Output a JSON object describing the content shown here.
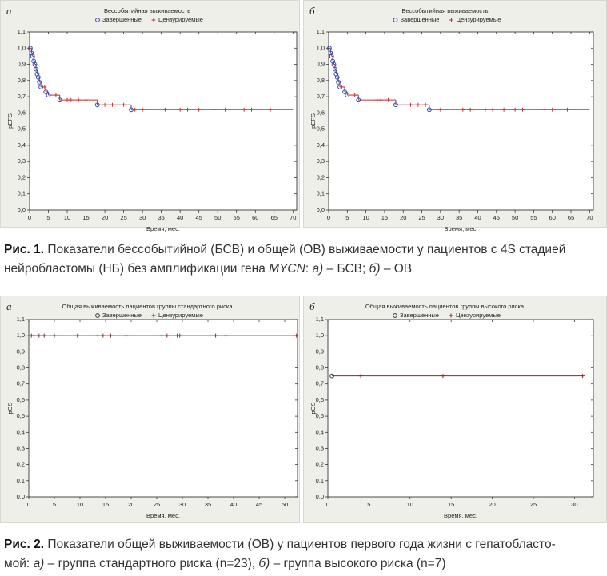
{
  "chart_data": [
    {
      "type": "step",
      "panel_label": "а",
      "title": "Бессобытийная выживаемость",
      "x_label": "Время, мес.",
      "y_label": "pEFS",
      "curve_color": "#c03030",
      "xlim": [
        0,
        71
      ],
      "xticks": [
        0,
        5,
        10,
        15,
        20,
        25,
        30,
        35,
        40,
        45,
        50,
        55,
        60,
        65,
        70
      ],
      "ylim": [
        0,
        1.1
      ],
      "yticks": [
        {
          "value": 0,
          "label": "0,0"
        },
        {
          "value": 0.1,
          "label": "0,1"
        },
        {
          "value": 0.2,
          "label": "0,2"
        },
        {
          "value": 0.3,
          "label": "0,3"
        },
        {
          "value": 0.4,
          "label": "0,4"
        },
        {
          "value": 0.5,
          "label": "0,5"
        },
        {
          "value": 0.6,
          "label": "0,6"
        },
        {
          "value": 0.7,
          "label": "0,7"
        },
        {
          "value": 0.8,
          "label": "0,8"
        },
        {
          "value": 0.9,
          "label": "0,9"
        },
        {
          "value": 1.0,
          "label": "1,0"
        },
        {
          "value": 1.1,
          "label": "1,1"
        }
      ],
      "curve": {
        "x": [
          0,
          0.5,
          0.8,
          1.1,
          1.4,
          1.7,
          2.0,
          2.3,
          2.6,
          3.0,
          4.3,
          5.0,
          8.0,
          18.0,
          27.0,
          70
        ],
        "values": [
          1.0,
          0.97,
          0.95,
          0.92,
          0.9,
          0.87,
          0.84,
          0.82,
          0.79,
          0.76,
          0.73,
          0.71,
          0.68,
          0.65,
          0.62,
          0.62
        ]
      },
      "series": [
        {
          "name": "Завершенные",
          "color": "#3a48a8",
          "marker": "circle",
          "x": [
            0.2,
            0.5,
            0.8,
            1.1,
            1.4,
            1.7,
            2.0,
            2.3,
            2.6,
            3.0,
            4.3,
            5.0,
            8.0,
            18.0,
            27.0
          ],
          "values": [
            1.0,
            0.97,
            0.95,
            0.92,
            0.9,
            0.87,
            0.84,
            0.82,
            0.79,
            0.76,
            0.73,
            0.71,
            0.68,
            0.65,
            0.62
          ]
        },
        {
          "name": "Цензурируемые",
          "color": "#d03030",
          "marker": "plus",
          "x": [
            4,
            7,
            10,
            11,
            13,
            15,
            20,
            22,
            25,
            28,
            30,
            36,
            40,
            42,
            45,
            49,
            52,
            57,
            59,
            64
          ],
          "values": [
            0.76,
            0.71,
            0.68,
            0.68,
            0.68,
            0.68,
            0.65,
            0.65,
            0.65,
            0.62,
            0.62,
            0.62,
            0.62,
            0.62,
            0.62,
            0.62,
            0.62,
            0.62,
            0.62,
            0.62
          ]
        }
      ]
    },
    {
      "type": "step",
      "panel_label": "б",
      "title": "Бессобытийная выживаемость",
      "x_label": "Время, мес.",
      "y_label": "pEFS",
      "curve_color": "#c03030",
      "xlim": [
        0,
        71
      ],
      "xticks": [
        0,
        5,
        10,
        15,
        20,
        25,
        30,
        35,
        40,
        45,
        50,
        55,
        60,
        65,
        70
      ],
      "ylim": [
        0,
        1.1
      ],
      "yticks": [
        {
          "value": 0,
          "label": "0,0"
        },
        {
          "value": 0.1,
          "label": "0,1"
        },
        {
          "value": 0.2,
          "label": "0,2"
        },
        {
          "value": 0.3,
          "label": "0,3"
        },
        {
          "value": 0.4,
          "label": "0,4"
        },
        {
          "value": 0.5,
          "label": "0,5"
        },
        {
          "value": 0.6,
          "label": "0,6"
        },
        {
          "value": 0.7,
          "label": "0,7"
        },
        {
          "value": 0.8,
          "label": "0,8"
        },
        {
          "value": 0.9,
          "label": "0,9"
        },
        {
          "value": 1.0,
          "label": "1,0"
        },
        {
          "value": 1.1,
          "label": "1,1"
        }
      ],
      "curve": {
        "x": [
          0,
          0.5,
          0.8,
          1.1,
          1.4,
          1.7,
          2.0,
          2.3,
          2.6,
          3.0,
          4.3,
          5.0,
          8.0,
          18.0,
          27.0,
          70
        ],
        "values": [
          1.0,
          0.97,
          0.95,
          0.92,
          0.9,
          0.87,
          0.84,
          0.82,
          0.79,
          0.76,
          0.73,
          0.71,
          0.68,
          0.65,
          0.62,
          0.62
        ]
      },
      "series": [
        {
          "name": "Завершенные",
          "color": "#3a48a8",
          "marker": "circle",
          "x": [
            0.2,
            0.5,
            0.8,
            1.1,
            1.4,
            1.7,
            2.0,
            2.3,
            2.6,
            3.0,
            4.3,
            5.0,
            8.0,
            18.0,
            27.0
          ],
          "values": [
            1.0,
            0.97,
            0.95,
            0.92,
            0.9,
            0.87,
            0.84,
            0.82,
            0.79,
            0.76,
            0.73,
            0.71,
            0.68,
            0.65,
            0.62
          ]
        },
        {
          "name": "Цензурируемые",
          "color": "#d03030",
          "marker": "plus",
          "x": [
            3.5,
            7,
            13,
            14,
            16,
            22,
            24,
            26,
            30,
            36,
            38,
            42,
            44,
            47,
            50,
            52,
            58,
            60,
            64
          ],
          "values": [
            0.76,
            0.71,
            0.68,
            0.68,
            0.68,
            0.65,
            0.65,
            0.65,
            0.62,
            0.62,
            0.62,
            0.62,
            0.62,
            0.62,
            0.62,
            0.62,
            0.62,
            0.62,
            0.62
          ]
        }
      ]
    },
    {
      "type": "step",
      "panel_label": "а",
      "title": "Общая выживаемость пациентов группы стандартного риска",
      "x_label": "Время, мес.",
      "y_label": "pOS",
      "curve_color": "#8a2a2a",
      "xlim": [
        0,
        52.5
      ],
      "xticks": [
        0,
        5,
        10,
        15,
        20,
        25,
        30,
        35,
        40,
        45,
        50
      ],
      "ylim": [
        0,
        1.1
      ],
      "yticks": [
        {
          "value": 0,
          "label": "0,0"
        },
        {
          "value": 0.1,
          "label": "0,1"
        },
        {
          "value": 0.2,
          "label": "0,2"
        },
        {
          "value": 0.3,
          "label": "0,3"
        },
        {
          "value": 0.4,
          "label": "0,4"
        },
        {
          "value": 0.5,
          "label": "0,5"
        },
        {
          "value": 0.6,
          "label": "0,6"
        },
        {
          "value": 0.7,
          "label": "0,7"
        },
        {
          "value": 0.8,
          "label": "0,8"
        },
        {
          "value": 0.9,
          "label": "0,9"
        },
        {
          "value": 1.0,
          "label": "1,0"
        },
        {
          "value": 1.1,
          "label": "1,1"
        }
      ],
      "curve": {
        "x": [
          0,
          52.5
        ],
        "values": [
          1.0,
          1.0
        ]
      },
      "series": [
        {
          "name": "Завершенные",
          "color": "#333333",
          "marker": "circle",
          "x": [],
          "values": []
        },
        {
          "name": "Цензурируемые",
          "color": "#8a2a2a",
          "marker": "plus",
          "x": [
            0.5,
            1,
            2,
            3,
            5,
            9.5,
            13.5,
            14.5,
            16,
            19,
            26,
            27,
            29,
            29.5,
            36.5,
            38.5,
            52.3
          ],
          "values": [
            1.0,
            1.0,
            1.0,
            1.0,
            1.0,
            1.0,
            1.0,
            1.0,
            1.0,
            1.0,
            1.0,
            1.0,
            1.0,
            1.0,
            1.0,
            1.0,
            1.0
          ]
        }
      ]
    },
    {
      "type": "step",
      "panel_label": "б",
      "title": "Общая выживаемость пациентов группы высокого риска",
      "x_label": "Время, мес.",
      "y_label": "pOS",
      "curve_color": "#8a2a2a",
      "xlim": [
        0,
        32.3
      ],
      "xticks": [
        0,
        5,
        10,
        15,
        20,
        25,
        30
      ],
      "ylim": [
        0,
        1.1
      ],
      "yticks": [
        {
          "value": 0,
          "label": "0,0"
        },
        {
          "value": 0.1,
          "label": "0,1"
        },
        {
          "value": 0.2,
          "label": "0,2"
        },
        {
          "value": 0.3,
          "label": "0,3"
        },
        {
          "value": 0.4,
          "label": "0,4"
        },
        {
          "value": 0.5,
          "label": "0,5"
        },
        {
          "value": 0.6,
          "label": "0,6"
        },
        {
          "value": 0.7,
          "label": "0,7"
        },
        {
          "value": 0.8,
          "label": "0,8"
        },
        {
          "value": 0.9,
          "label": "0,9"
        },
        {
          "value": 1.0,
          "label": "1,0"
        },
        {
          "value": 1.1,
          "label": "1,1"
        }
      ],
      "curve": {
        "x": [
          0.5,
          31
        ],
        "values": [
          0.75,
          0.75
        ]
      },
      "series": [
        {
          "name": "Завершенные",
          "color": "#333333",
          "marker": "circle",
          "x": [
            0.5
          ],
          "values": [
            0.75
          ]
        },
        {
          "name": "Цензурируемые",
          "color": "#8a2a2a",
          "marker": "plus",
          "x": [
            4,
            14,
            31
          ],
          "values": [
            0.75,
            0.75,
            0.75
          ]
        }
      ]
    }
  ],
  "captions": [
    {
      "lines": [
        [
          {
            "text": "Рис. 1.",
            "style": "bold"
          },
          {
            "text": " Показатели бессобытийной (БСВ) и общей (ОВ) выживаемости у пациентов с 4S стадией",
            "style": "normal"
          }
        ],
        [
          {
            "text": "нейробластомы (НБ) без амплификации гена ",
            "style": "normal"
          },
          {
            "text": "MYCN",
            "style": "italic"
          },
          {
            "text": ": ",
            "style": "normal"
          },
          {
            "text": "а)",
            "style": "italic"
          },
          {
            "text": " – БСВ; ",
            "style": "normal"
          },
          {
            "text": "б)",
            "style": "italic"
          },
          {
            "text": " – ОВ",
            "style": "normal"
          }
        ]
      ]
    },
    {
      "lines": [
        [
          {
            "text": "Рис. 2.",
            "style": "bold"
          },
          {
            "text": " Показатели общей выживаемости (ОВ) у пациентов первого года жизни с гепатобласто-",
            "style": "normal"
          }
        ],
        [
          {
            "text": "мой: ",
            "style": "normal"
          },
          {
            "text": "а)",
            "style": "italic"
          },
          {
            "text": " – группа стандартного риска (n=23), ",
            "style": "normal"
          },
          {
            "text": "б)",
            "style": "italic"
          },
          {
            "text": " – группа высокого риска (n=7)",
            "style": "normal"
          }
        ]
      ]
    }
  ]
}
